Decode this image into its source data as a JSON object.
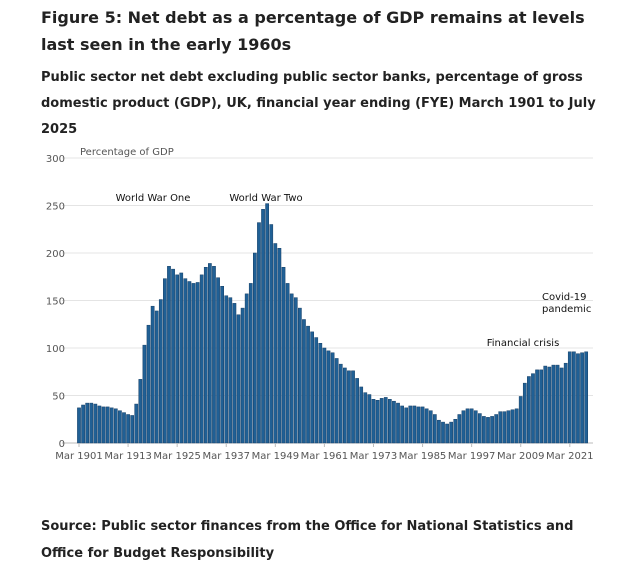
{
  "title": "Figure 5: Net debt as a percentage of GDP remains at levels last seen in the early 1960s",
  "subtitle": "Public sector net debt excluding public sector banks, percentage of gross domestic product (GDP), UK, financial year ending (FYE) March 1901 to July 2025",
  "source": "Source: Public sector finances from the Office for National Statistics and Office for Budget Responsibility",
  "chart_data": {
    "type": "bar",
    "ylabel": "Percentage of GDP",
    "ylim": [
      0,
      300
    ],
    "yticks": [
      "0",
      "50",
      "100",
      "150",
      "200",
      "250",
      "300"
    ],
    "grid": true,
    "color": "#206095",
    "xtick_labels": [
      "Mar 1901",
      "Mar 1913",
      "Mar 1925",
      "Mar 1937",
      "Mar 1949",
      "Mar 1961",
      "Mar 1973",
      "Mar 1985",
      "Mar 1997",
      "Mar 2009",
      "Mar 2021"
    ],
    "first_year": 1901,
    "values": [
      37,
      40,
      42,
      42,
      41,
      39,
      38,
      38,
      37,
      36,
      34,
      32,
      30,
      29,
      41,
      67,
      103,
      124,
      144,
      139,
      151,
      173,
      186,
      183,
      177,
      179,
      173,
      170,
      168,
      169,
      177,
      185,
      189,
      186,
      174,
      165,
      155,
      153,
      147,
      135,
      142,
      157,
      168,
      200,
      232,
      246,
      252,
      230,
      210,
      205,
      185,
      168,
      157,
      153,
      142,
      130,
      123,
      117,
      111,
      105,
      100,
      97,
      95,
      89,
      83,
      79,
      76,
      76,
      68,
      59,
      53,
      51,
      46,
      45,
      47,
      48,
      46,
      44,
      42,
      39,
      37,
      39,
      39,
      38,
      38,
      36,
      34,
      30,
      24,
      22,
      20,
      22,
      25,
      30,
      34,
      36,
      36,
      34,
      31,
      28,
      27,
      28,
      30,
      33,
      33,
      34,
      35,
      36,
      49,
      63,
      70,
      73,
      77,
      77,
      81,
      80,
      82,
      82,
      79,
      84,
      96,
      96,
      94,
      95,
      96
    ],
    "annotations": [
      "World War One",
      "World War Two",
      "Financial crisis",
      "Covid-19",
      "pandemic"
    ]
  }
}
